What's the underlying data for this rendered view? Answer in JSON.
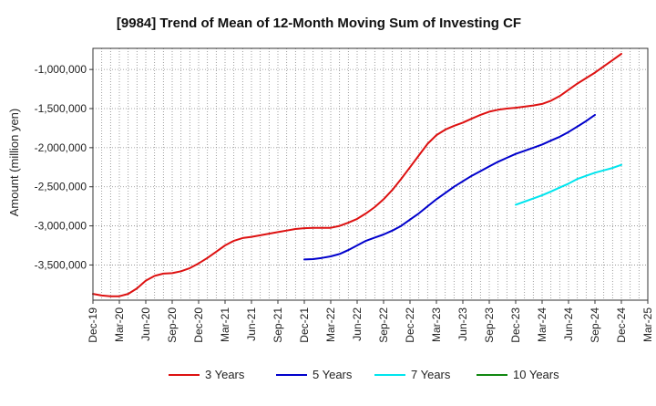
{
  "chart_data": {
    "type": "line",
    "title": "[9984]  Trend of Mean of 12-Month Moving Sum of Investing CF",
    "xlabel": "",
    "ylabel": "Amount (million yen)",
    "x_tick_labels": [
      "Dec-19",
      "Mar-20",
      "Jun-20",
      "Sep-20",
      "Dec-20",
      "Mar-21",
      "Jun-21",
      "Sep-21",
      "Dec-21",
      "Mar-22",
      "Jun-22",
      "Sep-22",
      "Dec-22",
      "Mar-23",
      "Jun-23",
      "Sep-23",
      "Dec-23",
      "Mar-24",
      "Jun-24",
      "Sep-24",
      "Dec-24",
      "Mar-25"
    ],
    "y_ticks": [
      -1000000,
      -1500000,
      -2000000,
      -2500000,
      -3000000,
      -3500000
    ],
    "y_tick_labels": [
      "-1,000,000",
      "-1,500,000",
      "-2,000,000",
      "-2,500,000",
      "-3,000,000",
      "-3,500,000"
    ],
    "ylim": [
      -3950000,
      -730000
    ],
    "grid": true,
    "legend_position": "bottom",
    "series": [
      {
        "name": "3 Years",
        "color": "#dd1111",
        "start_index": 0,
        "values": [
          -3870000,
          -3890000,
          -3900000,
          -3900000,
          -3870000,
          -3800000,
          -3700000,
          -3640000,
          -3610000,
          -3605000,
          -3580000,
          -3540000,
          -3480000,
          -3410000,
          -3330000,
          -3250000,
          -3190000,
          -3155000,
          -3140000,
          -3120000,
          -3100000,
          -3080000,
          -3060000,
          -3040000,
          -3030000,
          -3025000,
          -3025000,
          -3025000,
          -3000000,
          -2960000,
          -2910000,
          -2840000,
          -2760000,
          -2660000,
          -2540000,
          -2400000,
          -2250000,
          -2100000,
          -1950000,
          -1840000,
          -1770000,
          -1720000,
          -1680000,
          -1630000,
          -1580000,
          -1540000,
          -1515000,
          -1500000,
          -1490000,
          -1475000,
          -1460000,
          -1440000,
          -1400000,
          -1340000,
          -1260000,
          -1180000,
          -1110000,
          -1040000,
          -960000,
          -880000,
          -800000
        ]
      },
      {
        "name": "5 Years",
        "color": "#0000cc",
        "start_index": 24,
        "values": [
          -3430000,
          -3425000,
          -3410000,
          -3390000,
          -3360000,
          -3310000,
          -3250000,
          -3190000,
          -3150000,
          -3110000,
          -3060000,
          -3000000,
          -2920000,
          -2840000,
          -2750000,
          -2660000,
          -2580000,
          -2500000,
          -2430000,
          -2360000,
          -2300000,
          -2240000,
          -2180000,
          -2130000,
          -2080000,
          -2040000,
          -2000000,
          -1960000,
          -1910000,
          -1860000,
          -1800000,
          -1730000,
          -1660000,
          -1580000
        ]
      },
      {
        "name": "7 Years",
        "color": "#00e5ee",
        "start_index": 48,
        "values": [
          -2730000,
          -2690000,
          -2650000,
          -2610000,
          -2560000,
          -2510000,
          -2460000,
          -2400000,
          -2360000,
          -2320000,
          -2290000,
          -2260000,
          -2220000
        ]
      },
      {
        "name": "10 Years",
        "color": "#118811",
        "start_index": 61,
        "values": []
      }
    ]
  }
}
